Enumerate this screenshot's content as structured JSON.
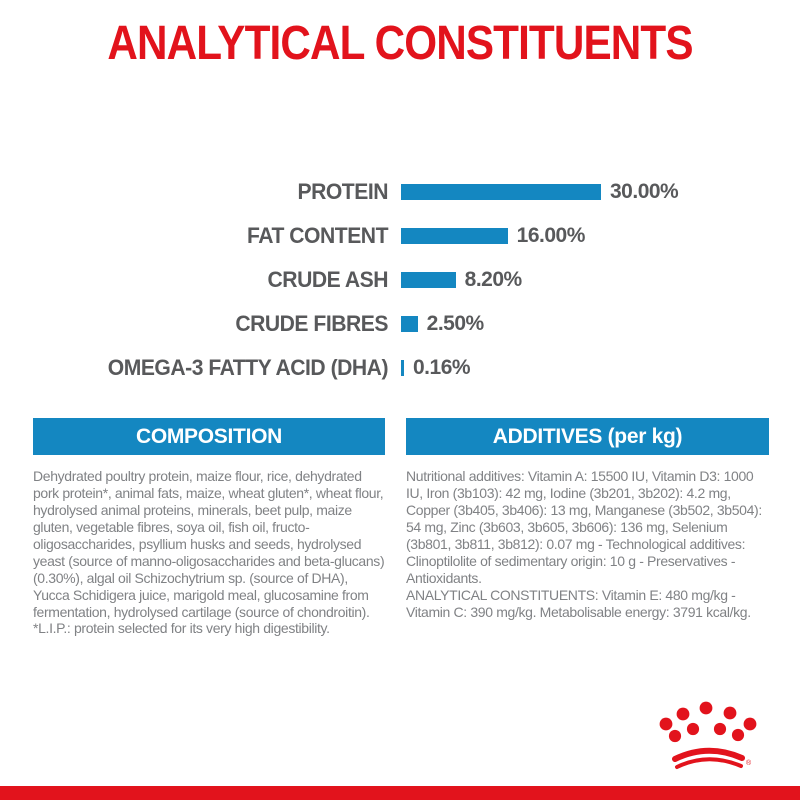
{
  "title": "ANALYTICAL CONSTITUENTS",
  "colors": {
    "brand_red": "#E2131C",
    "brand_blue": "#1487C1",
    "chart_label_gray": "#58595B",
    "body_text_gray": "#808285"
  },
  "chart_data": {
    "type": "bar",
    "orientation": "horizontal",
    "categories": [
      "PROTEIN",
      "FAT CONTENT",
      "CRUDE ASH",
      "CRUDE FIBRES",
      "OMEGA-3 FATTY ACID (DHA)"
    ],
    "values": [
      30.0,
      16.0,
      8.2,
      2.5,
      0.16
    ],
    "value_labels": [
      "30.00%",
      "16.00%",
      "8.20%",
      "2.50%",
      "0.16%"
    ],
    "unit": "%",
    "xlim": [
      0,
      30
    ],
    "grid": false,
    "legend": false,
    "bar_color": "#1487C1"
  },
  "composition": {
    "header": "COMPOSITION",
    "body": "Dehydrated poultry protein, maize flour, rice, dehydrated pork protein*, animal fats, maize, wheat gluten*, wheat flour, hydrolysed animal proteins, minerals, beet pulp, maize gluten, vegetable fibres, soya oil, fish oil, fructo-oligosaccharides, psyllium husks and seeds, hydrolysed yeast (source of manno-oligosaccharides and beta-glucans) (0.30%), algal oil Schizochytrium sp. (source of DHA), Yucca Schidigera juice, marigold meal, glucosamine from fermentation, hydrolysed cartilage (source of chondroitin).",
    "footnote": "*L.I.P.: protein selected for its very high digestibility."
  },
  "additives": {
    "header": "ADDITIVES (per kg)",
    "body": "Nutritional additives: Vitamin A: 15500 IU, Vitamin D3: 1000 IU, Iron (3b103): 42 mg, Iodine (3b201, 3b202): 4.2 mg, Copper (3b405, 3b406): 13 mg, Manganese (3b502, 3b504): 54 mg, Zinc (3b603, 3b605, 3b606): 136 mg, Selenium (3b801, 3b811, 3b812): 0.07 mg - Technological additives: Clinoptilolite of sedimentary origin: 10 g - Preservatives - Antioxidants.",
    "analytical": "ANALYTICAL CONSTITUENTS: Vitamin E: 480 mg/kg - Vitamin C: 390 mg/kg. Metabolisable energy: 3791 kcal/kg."
  },
  "brand": {
    "logo_name": "royal-canin-crown-logo",
    "registered_mark": "®"
  }
}
